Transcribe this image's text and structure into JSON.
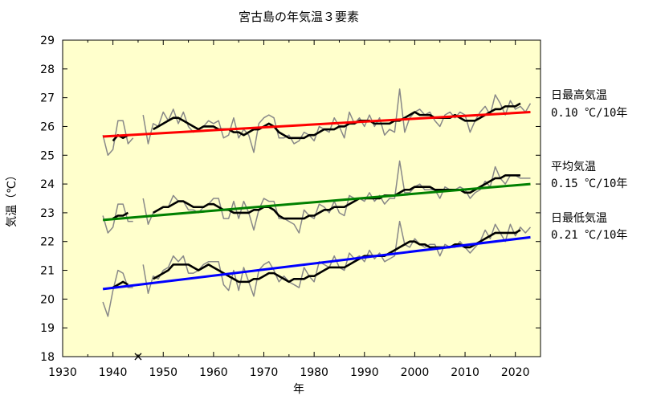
{
  "chart_data": {
    "type": "line",
    "title": "宮古島の年気温３要素",
    "xlabel": "年",
    "ylabel": "気温（℃）",
    "xlim": [
      1930,
      2025
    ],
    "ylim": [
      18,
      29
    ],
    "xticks": [
      1930,
      1940,
      1950,
      1960,
      1970,
      1980,
      1990,
      2000,
      2010,
      2020
    ],
    "yticks": [
      18,
      19,
      20,
      21,
      22,
      23,
      24,
      25,
      26,
      27,
      28,
      29
    ],
    "grid": false,
    "background": "#ffffcc",
    "missing_marker": {
      "year": 1945,
      "value": 18,
      "symbol": "×"
    },
    "years": [
      1938,
      1939,
      1940,
      1941,
      1942,
      1943,
      1944,
      1945,
      1946,
      1947,
      1948,
      1949,
      1950,
      1951,
      1952,
      1953,
      1954,
      1955,
      1956,
      1957,
      1958,
      1959,
      1960,
      1961,
      1962,
      1963,
      1964,
      1965,
      1966,
      1967,
      1968,
      1969,
      1970,
      1971,
      1972,
      1973,
      1974,
      1975,
      1976,
      1977,
      1978,
      1979,
      1980,
      1981,
      1982,
      1983,
      1984,
      1985,
      1986,
      1987,
      1988,
      1989,
      1990,
      1991,
      1992,
      1993,
      1994,
      1995,
      1996,
      1997,
      1998,
      1999,
      2000,
      2001,
      2002,
      2003,
      2004,
      2005,
      2006,
      2007,
      2008,
      2009,
      2010,
      2011,
      2012,
      2013,
      2014,
      2015,
      2016,
      2017,
      2018,
      2019,
      2020,
      2021,
      2022,
      2023
    ],
    "series": [
      {
        "name": "日最高気温",
        "trend_label": "0.10 ℃/10年",
        "annual": [
          25.7,
          25.0,
          25.2,
          26.2,
          26.2,
          25.4,
          25.6,
          null,
          26.4,
          25.4,
          26.1,
          26.0,
          26.5,
          26.2,
          26.6,
          26.1,
          26.5,
          26.0,
          25.8,
          25.9,
          26.0,
          26.2,
          26.1,
          26.2,
          25.6,
          25.7,
          26.3,
          25.6,
          25.9,
          25.7,
          25.1,
          26.1,
          26.3,
          26.4,
          26.3,
          25.6,
          25.6,
          25.7,
          25.4,
          25.5,
          25.8,
          25.7,
          25.5,
          26.0,
          25.9,
          25.8,
          26.3,
          26.0,
          25.6,
          26.5,
          26.1,
          26.3,
          26.0,
          26.4,
          26.0,
          26.3,
          25.7,
          25.9,
          25.8,
          27.3,
          25.8,
          26.3,
          26.5,
          26.6,
          26.4,
          26.5,
          26.2,
          26.0,
          26.4,
          26.5,
          26.3,
          26.5,
          26.4,
          25.8,
          26.2,
          26.5,
          26.7,
          26.4,
          27.1,
          26.8,
          26.4,
          26.9,
          26.6,
          26.7,
          26.5,
          26.8
        ],
        "moving_avg": [
          null,
          null,
          25.5,
          25.7,
          25.6,
          25.7,
          null,
          null,
          null,
          null,
          25.9,
          26.0,
          26.1,
          26.2,
          26.3,
          26.3,
          26.2,
          26.1,
          26.0,
          25.9,
          26.0,
          26.0,
          26.0,
          25.9,
          25.9,
          25.9,
          25.8,
          25.8,
          25.7,
          25.8,
          25.9,
          25.9,
          26.0,
          26.1,
          26.0,
          25.8,
          25.7,
          25.6,
          25.6,
          25.6,
          25.6,
          25.7,
          25.7,
          25.8,
          25.9,
          25.9,
          25.9,
          26.0,
          26.0,
          26.1,
          26.1,
          26.2,
          26.2,
          26.2,
          26.1,
          26.1,
          26.1,
          26.1,
          26.2,
          26.2,
          26.3,
          26.4,
          26.5,
          26.4,
          26.4,
          26.4,
          26.3,
          26.3,
          26.3,
          26.3,
          26.4,
          26.3,
          26.2,
          26.2,
          26.2,
          26.3,
          26.4,
          26.5,
          26.6,
          26.6,
          26.7,
          26.7,
          26.7,
          26.8,
          null,
          null
        ],
        "trend": [
          25.65,
          26.5
        ],
        "colors": {
          "annual": "#888888",
          "moving_avg": "#000000",
          "trend": "#ff0000"
        }
      },
      {
        "name": "平均気温",
        "trend_label": "0.15 ℃/10年",
        "annual": [
          22.9,
          22.3,
          22.5,
          23.3,
          23.3,
          22.7,
          22.7,
          null,
          23.5,
          22.6,
          23.0,
          23.1,
          23.2,
          23.2,
          23.6,
          23.4,
          23.4,
          23.1,
          23.1,
          23.0,
          23.2,
          23.3,
          23.5,
          23.5,
          22.8,
          22.8,
          23.4,
          22.8,
          23.4,
          23.0,
          22.4,
          23.1,
          23.5,
          23.4,
          23.4,
          22.8,
          22.8,
          22.7,
          22.6,
          22.3,
          23.1,
          22.9,
          22.8,
          23.3,
          23.2,
          23.0,
          23.4,
          23.0,
          22.9,
          23.6,
          23.5,
          23.5,
          23.4,
          23.7,
          23.4,
          23.6,
          23.3,
          23.5,
          23.5,
          24.8,
          23.7,
          23.7,
          23.9,
          24.0,
          23.8,
          23.8,
          23.8,
          23.5,
          23.9,
          23.8,
          23.8,
          23.9,
          23.8,
          23.5,
          23.7,
          23.8,
          24.1,
          23.9,
          24.6,
          24.2,
          24.0,
          24.3,
          24.3,
          24.2,
          24.2,
          24.2
        ],
        "moving_avg": [
          null,
          null,
          22.8,
          22.9,
          22.9,
          23.0,
          null,
          null,
          null,
          null,
          23.0,
          23.1,
          23.2,
          23.2,
          23.3,
          23.4,
          23.4,
          23.3,
          23.2,
          23.2,
          23.2,
          23.3,
          23.3,
          23.2,
          23.1,
          23.1,
          23.0,
          23.0,
          23.0,
          23.0,
          23.1,
          23.1,
          23.2,
          23.2,
          23.1,
          22.9,
          22.8,
          22.8,
          22.8,
          22.8,
          22.8,
          22.9,
          22.9,
          23.0,
          23.1,
          23.1,
          23.2,
          23.2,
          23.2,
          23.3,
          23.4,
          23.5,
          23.5,
          23.5,
          23.5,
          23.5,
          23.6,
          23.6,
          23.6,
          23.7,
          23.8,
          23.8,
          23.9,
          23.9,
          23.9,
          23.9,
          23.8,
          23.8,
          23.8,
          23.8,
          23.8,
          23.8,
          23.7,
          23.7,
          23.8,
          23.9,
          24.0,
          24.1,
          24.2,
          24.2,
          24.3,
          24.3,
          24.3,
          24.3,
          null,
          null
        ],
        "trend": [
          22.75,
          24.0
        ],
        "colors": {
          "annual": "#888888",
          "moving_avg": "#000000",
          "trend": "#008000"
        }
      },
      {
        "name": "日最低気温",
        "trend_label": "0.21 ℃/10年",
        "annual": [
          19.9,
          19.4,
          20.3,
          21.0,
          20.9,
          20.4,
          20.4,
          null,
          21.2,
          20.2,
          20.8,
          20.7,
          21.0,
          21.1,
          21.5,
          21.3,
          21.5,
          20.9,
          20.9,
          21.0,
          21.2,
          21.3,
          21.3,
          21.3,
          20.5,
          20.3,
          21.0,
          20.3,
          21.1,
          20.6,
          20.1,
          21.0,
          21.2,
          21.3,
          21.0,
          20.6,
          20.8,
          20.6,
          20.5,
          20.4,
          21.1,
          20.8,
          20.6,
          21.3,
          21.2,
          21.1,
          21.5,
          21.1,
          21.0,
          21.6,
          21.4,
          21.5,
          21.3,
          21.7,
          21.4,
          21.6,
          21.3,
          21.4,
          21.5,
          22.7,
          21.9,
          21.8,
          22.1,
          21.9,
          21.8,
          21.9,
          21.9,
          21.5,
          21.9,
          21.8,
          21.8,
          22.0,
          21.8,
          21.6,
          21.8,
          22.0,
          22.4,
          22.1,
          22.6,
          22.3,
          22.0,
          22.6,
          22.2,
          22.5,
          22.3,
          22.5
        ],
        "moving_avg": [
          null,
          null,
          20.4,
          20.5,
          20.6,
          20.5,
          null,
          null,
          null,
          null,
          20.7,
          20.8,
          20.9,
          21.0,
          21.2,
          21.2,
          21.2,
          21.2,
          21.1,
          21.0,
          21.1,
          21.2,
          21.1,
          21.0,
          20.9,
          20.8,
          20.7,
          20.6,
          20.6,
          20.6,
          20.7,
          20.7,
          20.8,
          20.9,
          20.9,
          20.8,
          20.7,
          20.6,
          20.7,
          20.7,
          20.7,
          20.8,
          20.8,
          20.9,
          21.0,
          21.1,
          21.1,
          21.1,
          21.1,
          21.2,
          21.3,
          21.4,
          21.5,
          21.5,
          21.5,
          21.5,
          21.5,
          21.6,
          21.7,
          21.8,
          21.9,
          22.0,
          22.0,
          21.9,
          21.9,
          21.8,
          21.8,
          21.8,
          21.8,
          21.8,
          21.9,
          21.9,
          21.8,
          21.8,
          21.9,
          22.0,
          22.1,
          22.2,
          22.3,
          22.3,
          22.3,
          22.3,
          22.3,
          22.4,
          null,
          null
        ],
        "trend": [
          20.35,
          22.15
        ],
        "colors": {
          "annual": "#888888",
          "moving_avg": "#000000",
          "trend": "#0000ff"
        }
      }
    ]
  }
}
